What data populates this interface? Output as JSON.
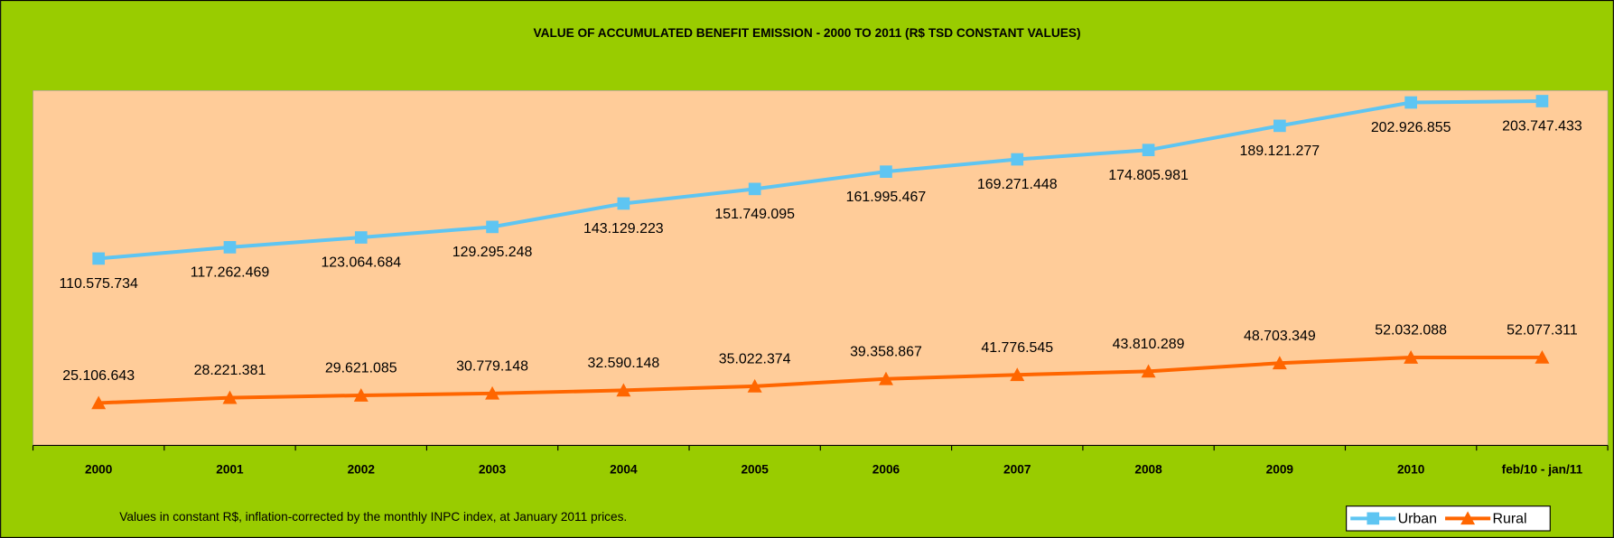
{
  "chart_data": {
    "type": "line",
    "title": "VALUE OF ACCUMULATED BENEFIT EMISSION - 2000 TO 2011 (R$ TSD CONSTANT VALUES)",
    "categories": [
      "2000",
      "2001",
      "2002",
      "2003",
      "2004",
      "2005",
      "2006",
      "2007",
      "2008",
      "2009",
      "2010",
      "feb/10 - jan/11"
    ],
    "series": [
      {
        "name": "Urban",
        "color": "#5ec5f2",
        "values": [
          110575734,
          117262469,
          123064684,
          129295248,
          143129223,
          151749095,
          161995467,
          169271448,
          174805981,
          189121277,
          202926855,
          203747433
        ],
        "value_labels": [
          "110.575.734",
          "117.262.469",
          "123.064.684",
          "129.295.248",
          "143.129.223",
          "151.749.095",
          "161.995.467",
          "169.271.448",
          "174.805.981",
          "189.121.277",
          "202.926.855",
          "203.747.433"
        ]
      },
      {
        "name": "Rural",
        "color": "#ff6600",
        "values": [
          25106643,
          28221381,
          29621085,
          30779148,
          32590148,
          35022374,
          39358867,
          41776545,
          43810289,
          48703349,
          52032088,
          52077311
        ],
        "value_labels": [
          "25.106.643",
          "28.221.381",
          "29.621.085",
          "30.779.148",
          "32.590.148",
          "35.022.374",
          "39.358.867",
          "41.776.545",
          "43.810.289",
          "48.703.349",
          "52.032.088",
          "52.077.311"
        ]
      }
    ],
    "ylim": [
      0,
      210000000
    ],
    "note": "Values in constant R$, inflation-corrected by the monthly INPC index, at January 2011 prices.",
    "legend": "bottom-right"
  }
}
